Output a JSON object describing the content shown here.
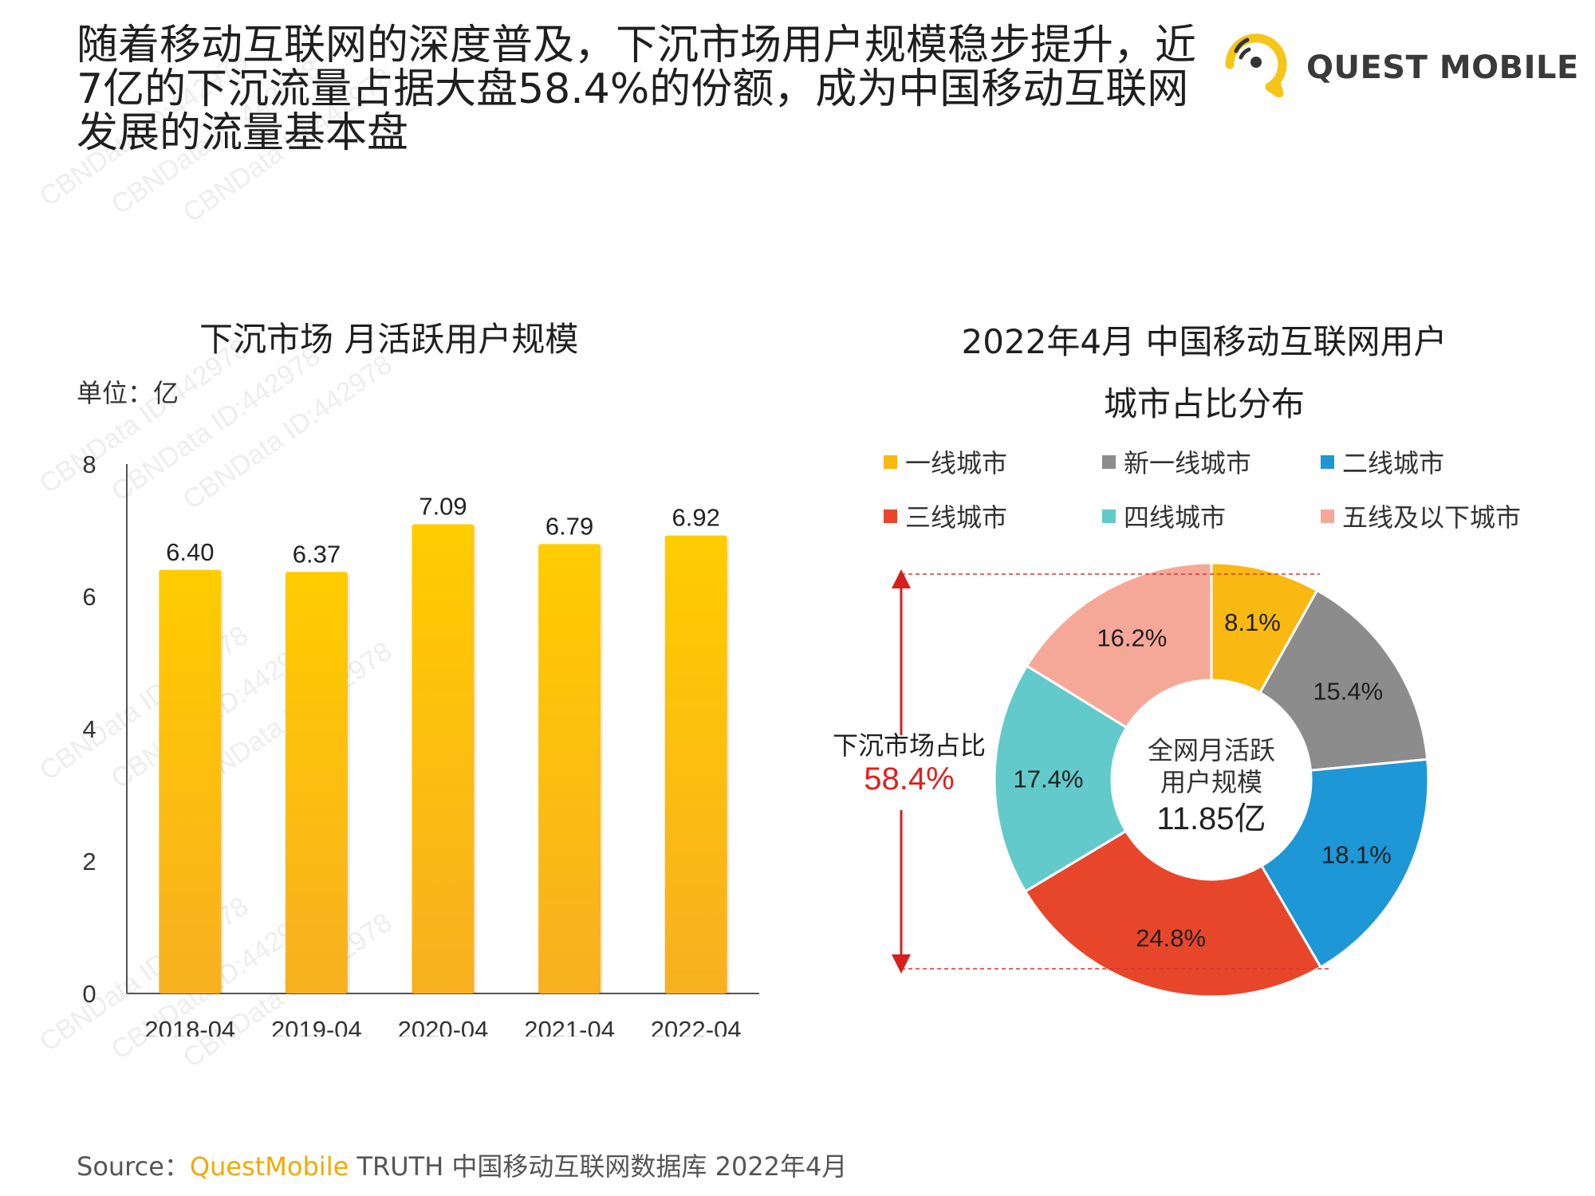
{
  "headline": "随着移动互联网的深度普及，下沉市场用户规模稳步提升，近7亿的下沉流量占据大盘58.4%的份额，成为中国移动互联网发展的流量基本盘",
  "logo": {
    "text": "QUEST MOBILE"
  },
  "watermark": "CBNData ID:442978",
  "bar_chart_title": "下沉市场 月活跃用户规模",
  "bar_chart_unit": "单位：亿",
  "pie_chart_title_line1": "2022年4月 中国移动互联网用户",
  "pie_chart_title_line2": "城市占比分布",
  "bracket": {
    "label": "下沉市场占比",
    "value": "58.4%"
  },
  "center": {
    "line1": "全网月活跃",
    "line2": "用户规模",
    "value": "11.85亿"
  },
  "source": {
    "prefix": "Source：",
    "brand": "QuestMobile",
    "rest": " TRUTH 中国移动互联网数据库 2022年4月"
  },
  "chart_data": [
    {
      "type": "bar",
      "title": "下沉市场 月活跃用户规模",
      "ylabel": "单位：亿",
      "categories": [
        "2018-04",
        "2019-04",
        "2020-04",
        "2021-04",
        "2022-04"
      ],
      "values": [
        6.4,
        6.37,
        7.09,
        6.79,
        6.92
      ],
      "value_labels": [
        "6.40",
        "6.37",
        "7.09",
        "6.79",
        "6.92"
      ],
      "ylim": [
        0,
        8
      ],
      "yticks": [
        0,
        2,
        4,
        6,
        8
      ],
      "color": "#FFC400",
      "grid": false
    },
    {
      "type": "pie",
      "title": "2022年4月 中国移动互联网用户城市占比分布",
      "donut": true,
      "legend_position": "top",
      "categories": [
        "一线城市",
        "新一线城市",
        "二线城市",
        "三线城市",
        "四线城市",
        "五线及以下城市"
      ],
      "values": [
        8.1,
        15.4,
        18.1,
        24.8,
        17.4,
        16.2
      ],
      "value_labels": [
        "8.1%",
        "15.4%",
        "18.1%",
        "24.8%",
        "17.4%",
        "16.2%"
      ],
      "colors": [
        "#F9B812",
        "#8C8C8C",
        "#1E97D6",
        "#E8462A",
        "#62CACA",
        "#F6A898"
      ]
    }
  ]
}
